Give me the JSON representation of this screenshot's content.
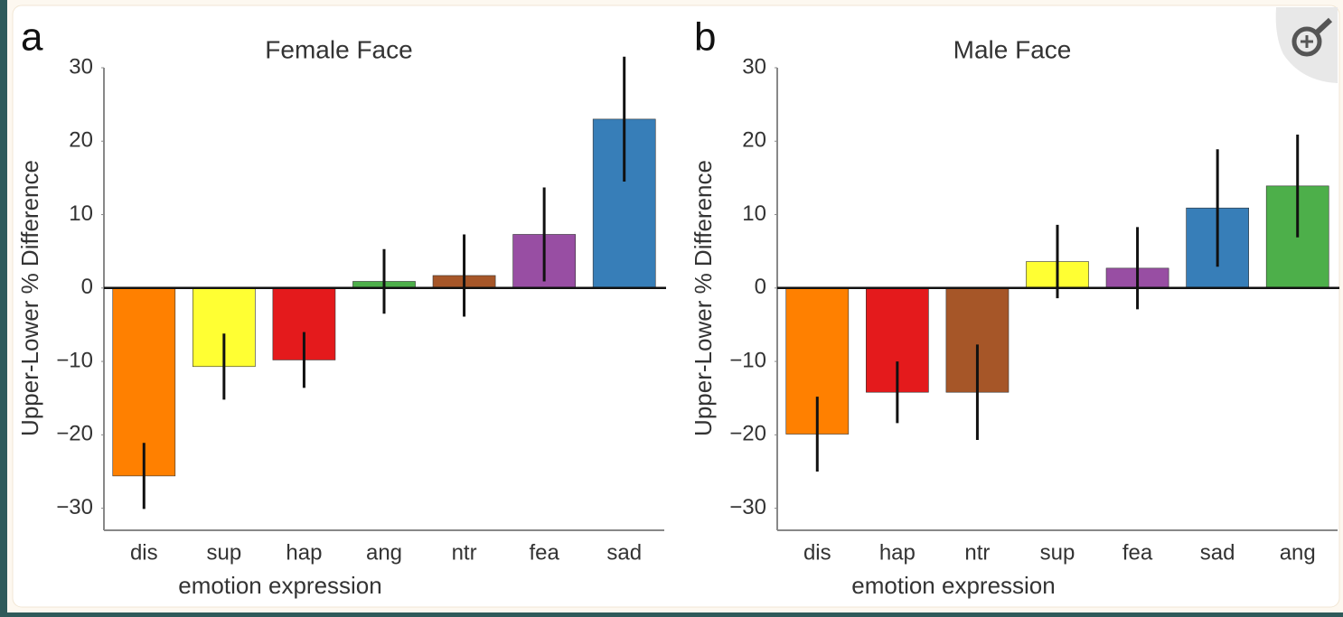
{
  "chart_data": [
    {
      "type": "bar",
      "panel_label": "a",
      "title": "Female Face",
      "x_label": "emotion expression",
      "y_label": "Upper-Lower % Difference",
      "categories": [
        "dis",
        "sup",
        "hap",
        "ang",
        "ntr",
        "fea",
        "sad"
      ],
      "values": [
        -25.6,
        -10.7,
        -9.8,
        0.9,
        1.7,
        7.3,
        23
      ],
      "errors": [
        4.5,
        4.5,
        3.8,
        4.4,
        5.6,
        6.4,
        8.5
      ],
      "colors": [
        "#ff8000",
        "#ffff33",
        "#e41a1c",
        "#4daf4a",
        "#a65628",
        "#984ea3",
        "#377eb8"
      ],
      "ylim": [
        -33,
        30
      ],
      "yticks": [
        {
          "value": -30,
          "label": "−30"
        },
        {
          "value": -20,
          "label": "−20"
        },
        {
          "value": -10,
          "label": "−10"
        },
        0,
        10,
        20,
        30
      ]
    },
    {
      "type": "bar",
      "panel_label": "b",
      "title": "Male Face",
      "x_label": "emotion expression",
      "y_label": "Upper-Lower % Difference",
      "categories": [
        "dis",
        "hap",
        "ntr",
        "sup",
        "fea",
        "sad",
        "ang"
      ],
      "values": [
        -19.9,
        -14.2,
        -14.2,
        3.6,
        2.7,
        10.9,
        13.9
      ],
      "errors": [
        5.1,
        4.2,
        6.5,
        5,
        5.6,
        8,
        7
      ],
      "colors": [
        "#ff8000",
        "#e41a1c",
        "#a65628",
        "#ffff33",
        "#984ea3",
        "#377eb8",
        "#4daf4a"
      ],
      "ylim": [
        -33,
        30
      ],
      "yticks": [
        {
          "value": -30,
          "label": "−30"
        },
        {
          "value": -20,
          "label": "−20"
        },
        {
          "value": -10,
          "label": "−10"
        },
        0,
        10,
        20,
        30
      ]
    }
  ]
}
